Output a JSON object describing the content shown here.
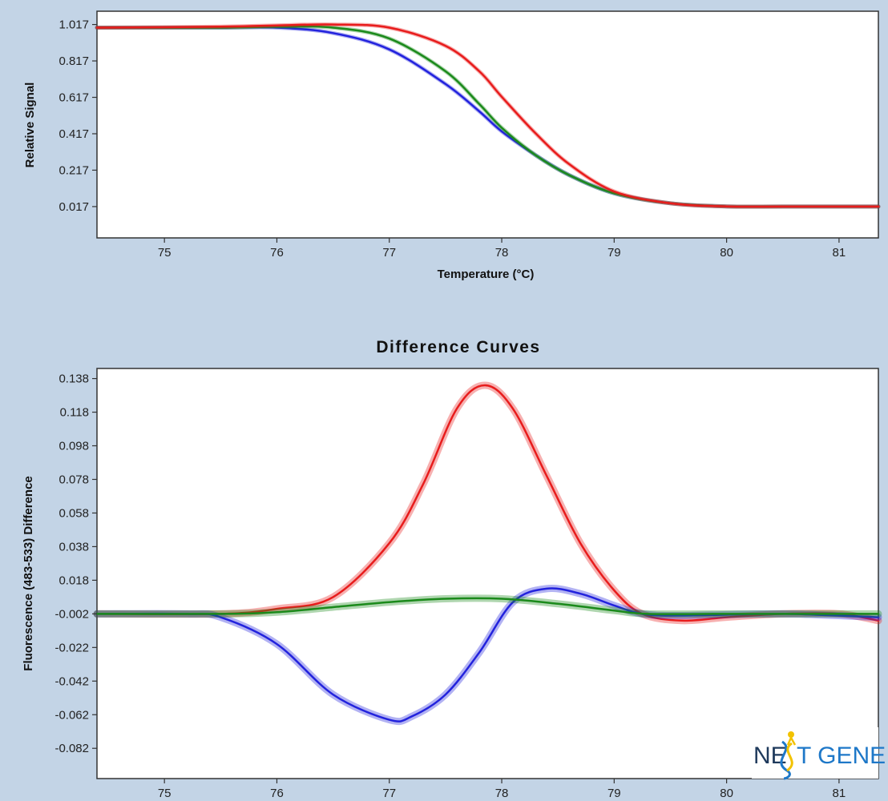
{
  "chart_data": [
    {
      "type": "line",
      "title": "",
      "xlabel": "Temperature (°C)",
      "ylabel": "Relative Signal",
      "xlim": [
        74.4,
        81.35
      ],
      "ylim": [
        -0.155,
        1.09
      ],
      "xticks": [
        "75",
        "76",
        "77",
        "78",
        "79",
        "80",
        "81"
      ],
      "yticks": [
        "1.017",
        "0.817",
        "0.617",
        "0.417",
        "0.217",
        "0.017"
      ],
      "grid": false,
      "series": [
        {
          "color": "#2222dd",
          "x": [
            74.4,
            75.5,
            76.0,
            76.5,
            77.0,
            77.5,
            77.8,
            78.0,
            78.3,
            78.6,
            79.0,
            79.5,
            80.0,
            80.5,
            81.35
          ],
          "values": [
            1.0,
            1.0,
            1.0,
            0.97,
            0.88,
            0.69,
            0.54,
            0.43,
            0.3,
            0.19,
            0.09,
            0.035,
            0.018,
            0.017,
            0.017
          ]
        },
        {
          "color": "#1b8a1b",
          "x": [
            74.4,
            75.5,
            76.0,
            76.5,
            77.0,
            77.5,
            77.8,
            78.0,
            78.3,
            78.6,
            79.0,
            79.5,
            80.0,
            80.5,
            81.35
          ],
          "values": [
            1.0,
            1.0,
            1.005,
            1.0,
            0.94,
            0.76,
            0.58,
            0.45,
            0.3,
            0.19,
            0.09,
            0.035,
            0.018,
            0.017,
            0.017
          ]
        },
        {
          "color": "#e81c1c",
          "x": [
            74.4,
            75.5,
            76.0,
            76.5,
            77.0,
            77.5,
            77.8,
            78.0,
            78.3,
            78.6,
            79.0,
            79.5,
            80.0,
            80.5,
            81.35
          ],
          "values": [
            1.0,
            1.005,
            1.012,
            1.017,
            1.0,
            0.9,
            0.76,
            0.62,
            0.42,
            0.25,
            0.1,
            0.035,
            0.018,
            0.017,
            0.017
          ]
        }
      ]
    },
    {
      "type": "line",
      "title": "Difference Curves",
      "xlabel": "",
      "ylabel": "Fluorescence (483-533) Difference",
      "xlim": [
        74.4,
        81.35
      ],
      "ylim": [
        -0.1,
        0.144
      ],
      "xticks": [
        "75",
        "76",
        "77",
        "78",
        "79",
        "80",
        "81"
      ],
      "yticks": [
        "0.138",
        "0.118",
        "0.098",
        "0.078",
        "0.058",
        "0.038",
        "0.018",
        "-0.002",
        "-0.022",
        "-0.042",
        "-0.062",
        "-0.082"
      ],
      "grid": false,
      "series": [
        {
          "color": "#e81c1c",
          "x": [
            74.4,
            75.5,
            76.0,
            76.5,
            77.0,
            77.3,
            77.6,
            77.85,
            78.1,
            78.4,
            78.7,
            79.0,
            79.25,
            79.6,
            80.0,
            80.5,
            81.0,
            81.35
          ],
          "values": [
            -0.002,
            -0.002,
            0.001,
            0.008,
            0.04,
            0.075,
            0.12,
            0.134,
            0.12,
            0.08,
            0.04,
            0.012,
            -0.002,
            -0.006,
            -0.004,
            -0.002,
            -0.002,
            -0.006
          ]
        },
        {
          "color": "#2222dd",
          "x": [
            74.4,
            75.2,
            75.5,
            76.0,
            76.5,
            77.0,
            77.2,
            77.5,
            77.8,
            78.1,
            78.4,
            78.7,
            79.0,
            79.25,
            79.6,
            80.5,
            81.35
          ],
          "values": [
            -0.002,
            -0.002,
            -0.004,
            -0.02,
            -0.05,
            -0.065,
            -0.063,
            -0.05,
            -0.025,
            0.005,
            0.013,
            0.01,
            0.003,
            -0.002,
            -0.003,
            -0.002,
            -0.004
          ]
        },
        {
          "color": "#1b8a1b",
          "x": [
            74.4,
            75.5,
            76.0,
            76.5,
            77.0,
            77.5,
            78.0,
            78.5,
            79.0,
            79.3,
            80.0,
            81.35
          ],
          "values": [
            -0.002,
            -0.002,
            -0.001,
            0.002,
            0.005,
            0.007,
            0.007,
            0.004,
            0.0,
            -0.002,
            -0.002,
            -0.002
          ]
        }
      ]
    }
  ],
  "logo": {
    "text_left": "NE",
    "text_right": "T GENE",
    "colors": {
      "dark": "#1f3a5c",
      "blue": "#1e78c8",
      "yellow": "#f2c200"
    }
  }
}
